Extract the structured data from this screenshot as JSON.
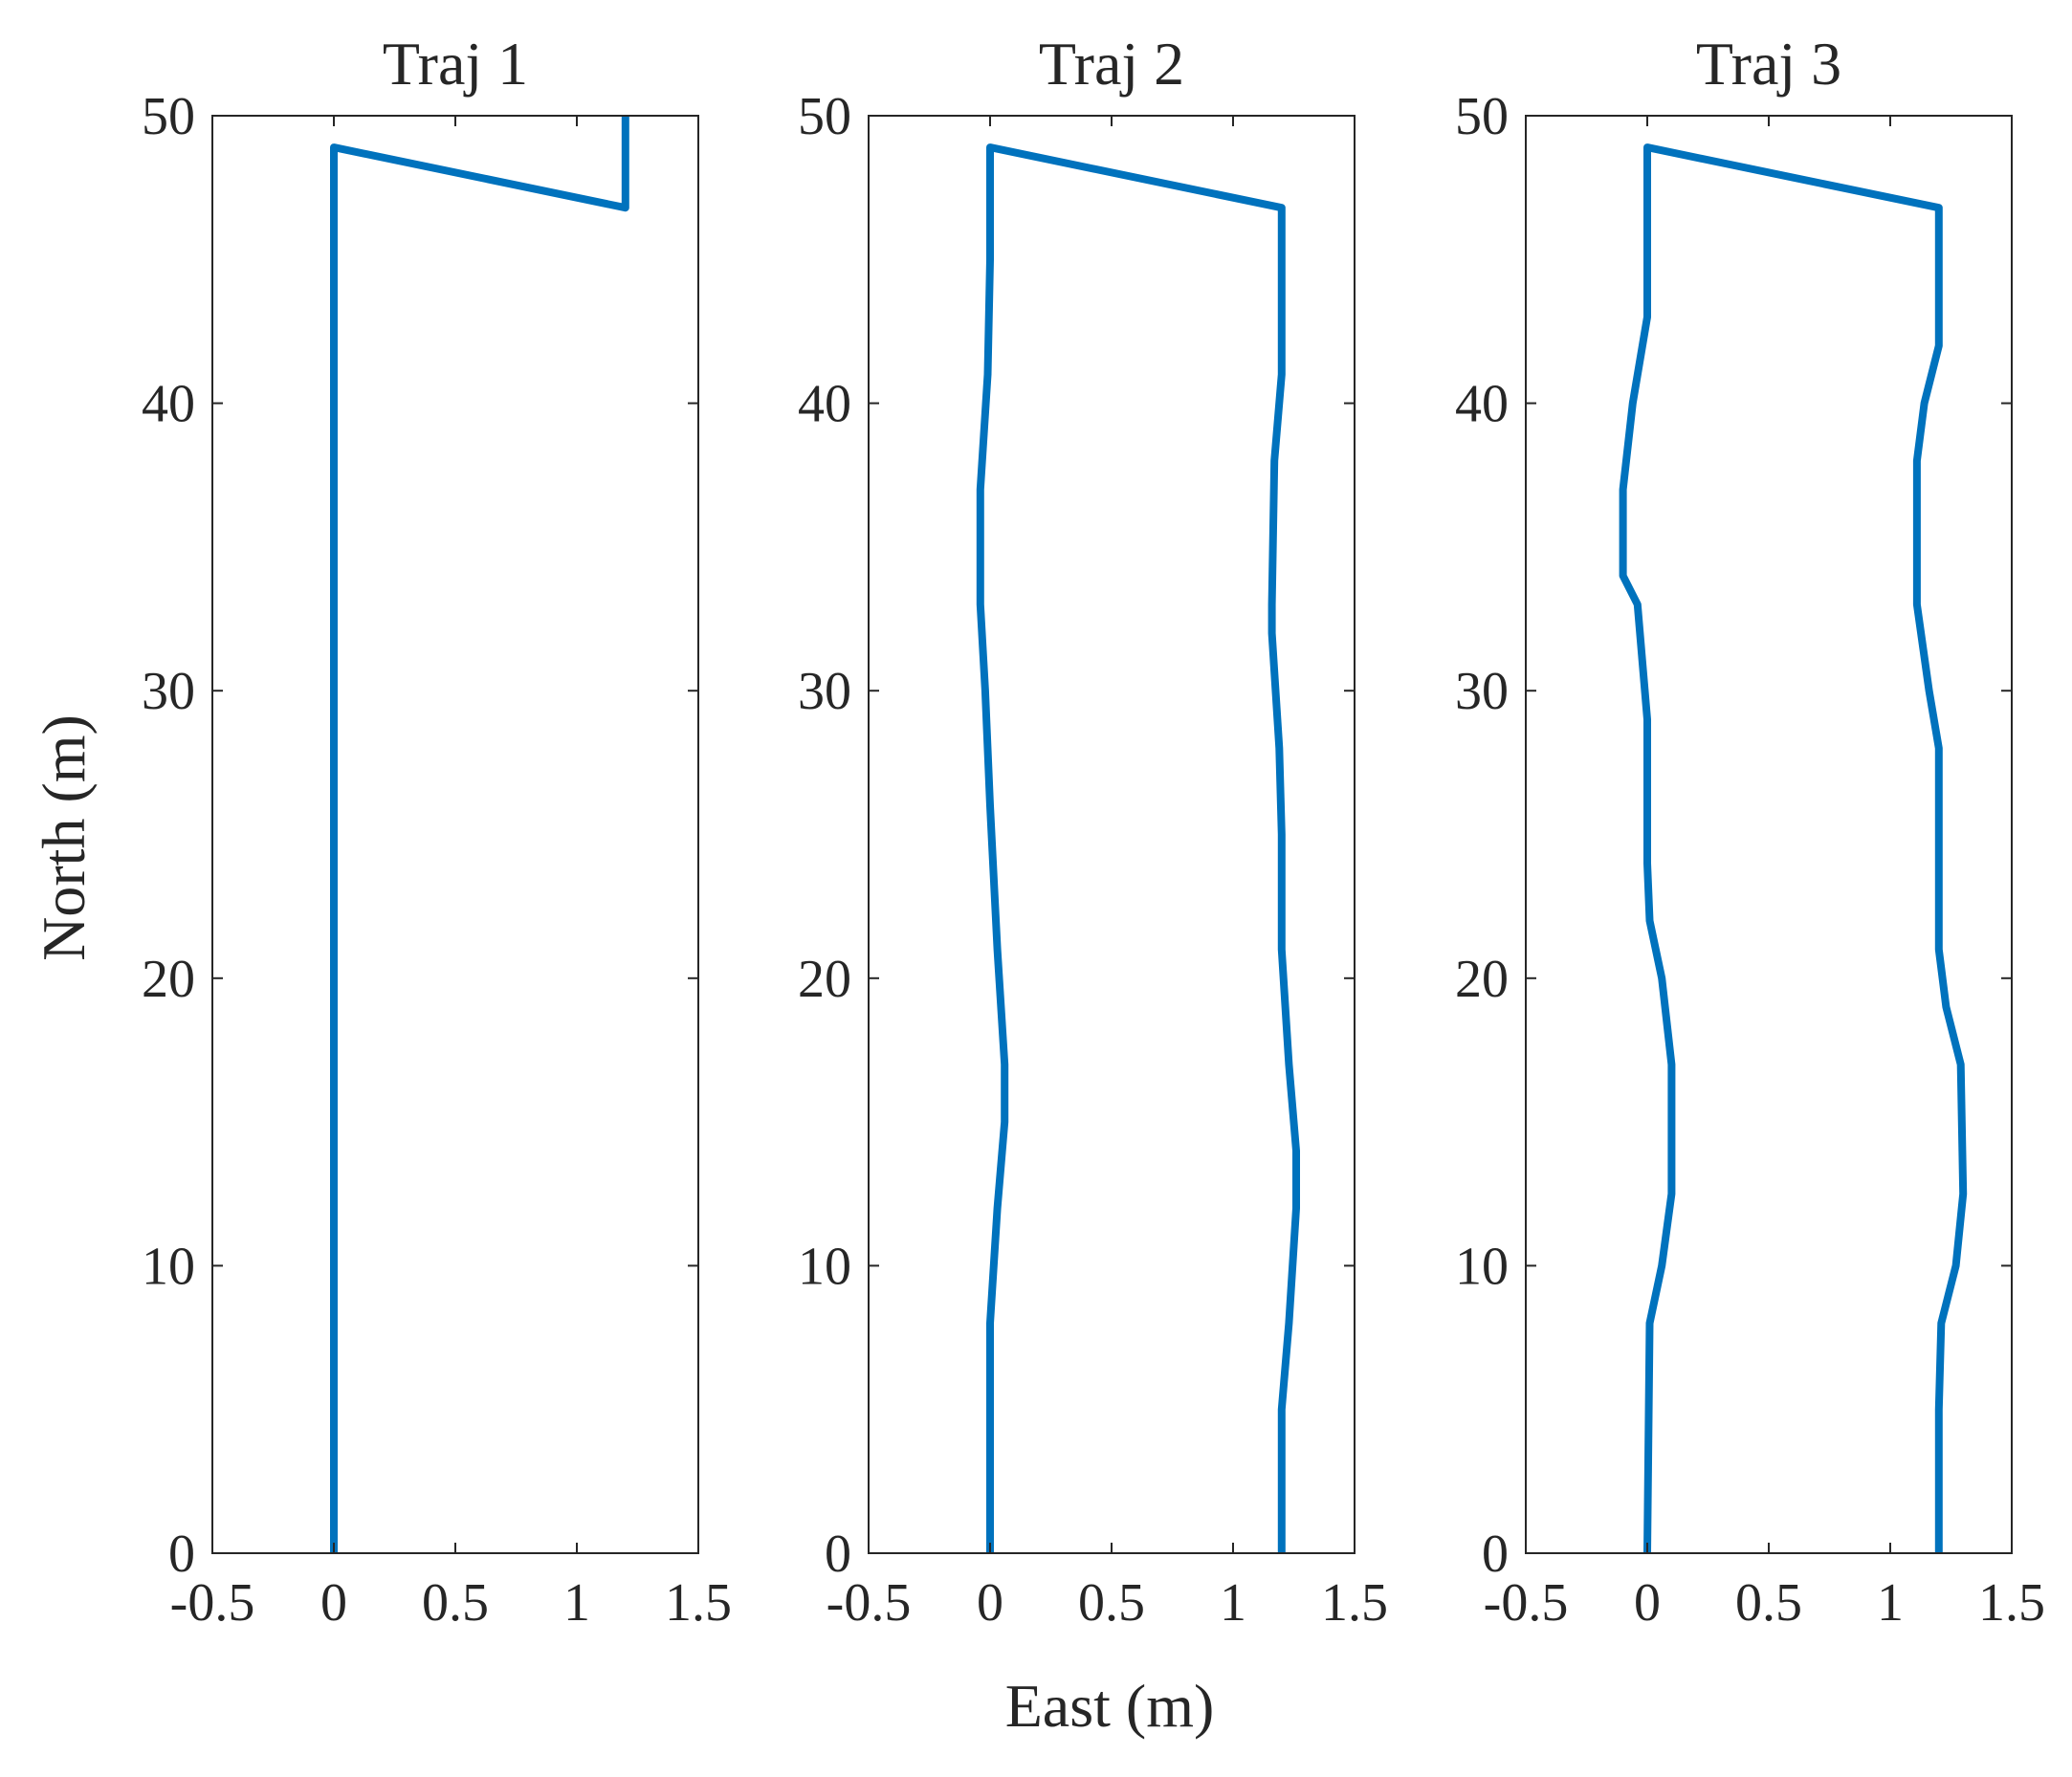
{
  "figure": {
    "xlabel": "East (m)",
    "ylabel": "North (m)",
    "line_color": "#0072BD",
    "axis_color": "#262626"
  },
  "chart_data": [
    {
      "type": "line",
      "title": "Traj 1",
      "xlim": [
        -0.5,
        1.5
      ],
      "ylim": [
        0,
        50
      ],
      "xticks": [
        -0.5,
        0,
        0.5,
        1,
        1.5
      ],
      "xtick_labels": [
        "-0.5",
        "0",
        "0.5",
        "1",
        "1.5"
      ],
      "yticks": [
        0,
        10,
        20,
        30,
        40,
        50
      ],
      "ytick_labels": [
        "0",
        "10",
        "20",
        "30",
        "40",
        "50"
      ],
      "grid": false,
      "series": [
        {
          "x": [
            0,
            0,
            1.2,
            1.2
          ],
          "y": [
            0,
            48.9,
            46.8,
            50
          ]
        }
      ]
    },
    {
      "type": "line",
      "title": "Traj 2",
      "xlim": [
        -0.5,
        1.5
      ],
      "ylim": [
        0,
        50
      ],
      "xticks": [
        -0.5,
        0,
        0.5,
        1,
        1.5
      ],
      "xtick_labels": [
        "-0.5",
        "0",
        "0.5",
        "1",
        "1.5"
      ],
      "yticks": [
        0,
        10,
        20,
        30,
        40,
        50
      ],
      "ytick_labels": [
        "0",
        "10",
        "20",
        "30",
        "40",
        "50"
      ],
      "grid": false,
      "series": [
        {
          "x": [
            0,
            0,
            0.03,
            0.06,
            0.06,
            0.03,
            0.0,
            -0.02,
            -0.04,
            -0.04,
            -0.01,
            0,
            0,
            0,
            1.2,
            1.2,
            1.2,
            1.17,
            1.16,
            1.16,
            1.19,
            1.2,
            1.2,
            1.2,
            1.23,
            1.26,
            1.26,
            1.23,
            1.2,
            1.2
          ],
          "y": [
            0,
            8,
            12,
            15,
            17,
            21,
            26,
            30,
            33,
            37,
            41,
            45,
            48.9,
            48.9,
            46.8,
            42,
            41,
            38,
            33,
            32,
            28,
            25,
            22,
            21,
            17,
            14,
            12,
            8,
            5,
            0
          ]
        }
      ]
    },
    {
      "type": "line",
      "title": "Traj 3",
      "xlim": [
        -0.5,
        1.5
      ],
      "ylim": [
        0,
        50
      ],
      "xticks": [
        -0.5,
        0,
        0.5,
        1,
        1.5
      ],
      "xtick_labels": [
        "-0.5",
        "0",
        "0.5",
        "1",
        "1.5"
      ],
      "yticks": [
        0,
        10,
        20,
        30,
        40,
        50
      ],
      "ytick_labels": [
        "0",
        "10",
        "20",
        "30",
        "40",
        "50"
      ],
      "grid": false,
      "series": [
        {
          "x": [
            0,
            0.01,
            0.06,
            0.1,
            0.1,
            0.06,
            0.01,
            0,
            0,
            -0.04,
            -0.1,
            -0.1,
            -0.06,
            0,
            0,
            0,
            1.2,
            1.2,
            1.14,
            1.11,
            1.11,
            1.16,
            1.2,
            1.2,
            1.23,
            1.29,
            1.3,
            1.27,
            1.21,
            1.2,
            1.2
          ],
          "y": [
            0,
            8,
            10,
            12.5,
            17,
            20,
            22,
            24,
            29,
            33,
            34,
            37,
            40,
            43,
            48.9,
            48.9,
            46.8,
            42,
            40,
            38,
            33,
            30,
            28,
            21,
            19,
            17,
            12.5,
            10,
            8,
            5,
            0
          ]
        }
      ]
    }
  ]
}
